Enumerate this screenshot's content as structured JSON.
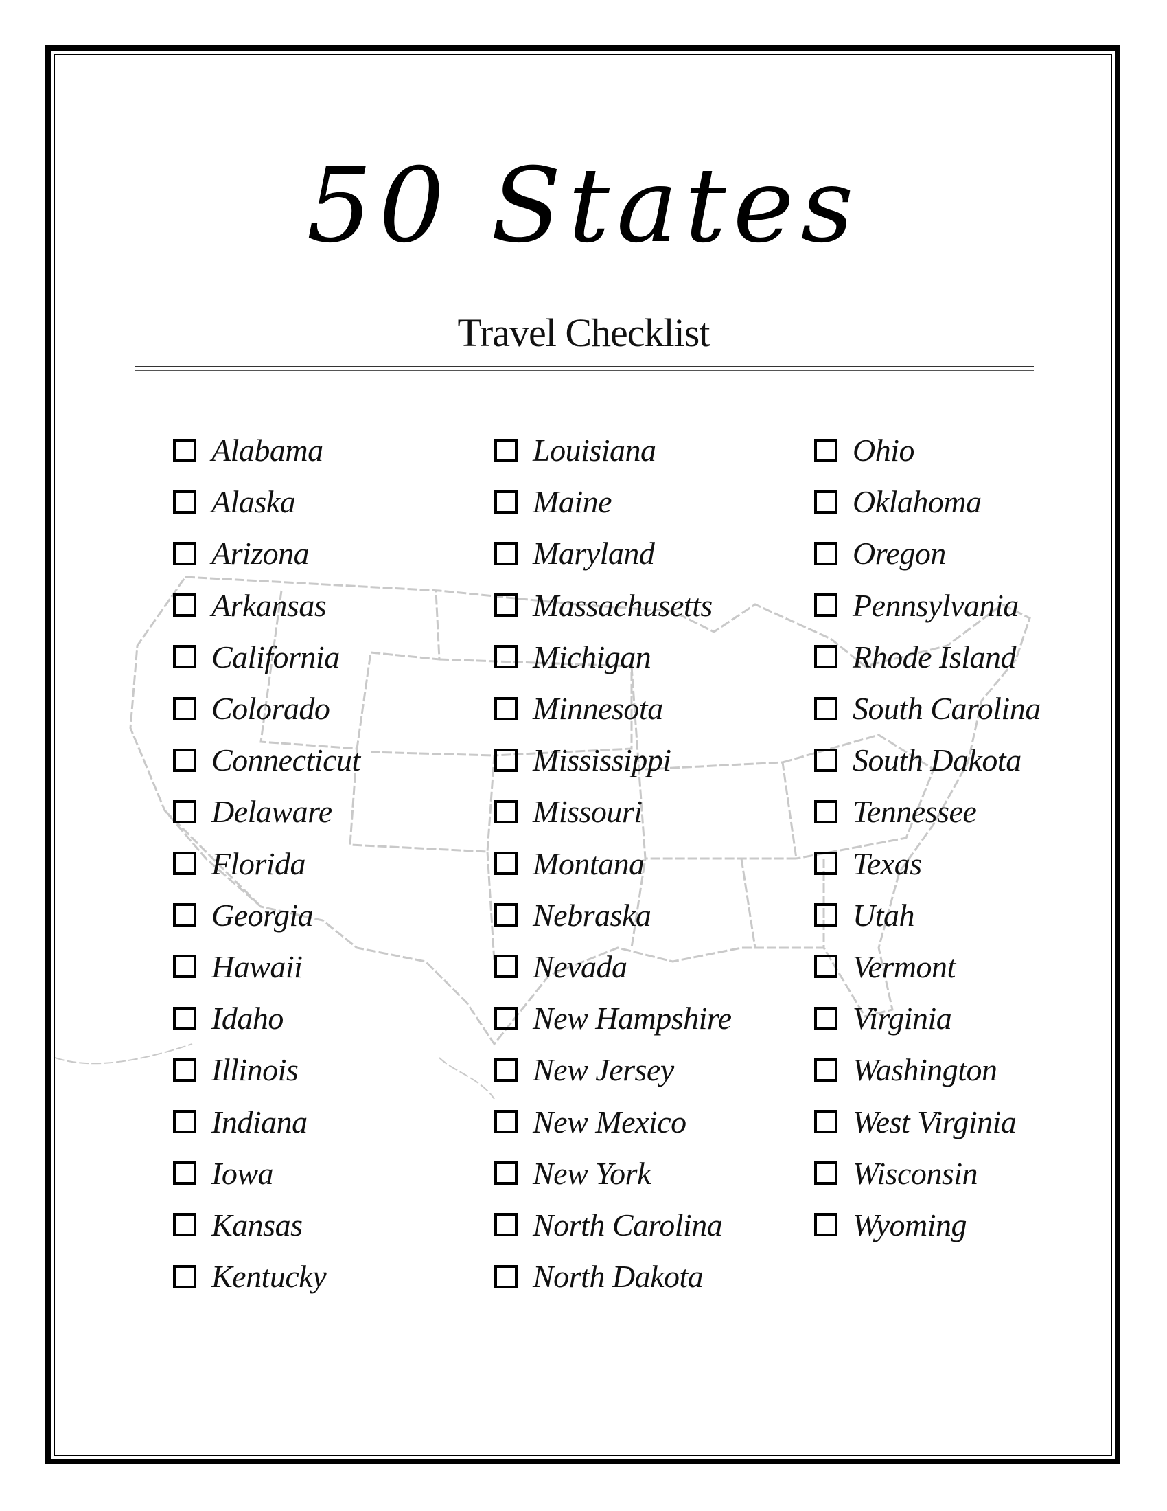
{
  "header": {
    "title": "50 States",
    "subtitle": "Travel Checklist"
  },
  "checklist": {
    "columns": [
      [
        "Alabama",
        "Alaska",
        "Arizona",
        "Arkansas",
        "California",
        "Colorado",
        "Connecticut",
        "Delaware",
        "Florida",
        "Georgia",
        "Hawaii",
        "Idaho",
        "Illinois",
        "Indiana",
        "Iowa",
        "Kansas",
        "Kentucky"
      ],
      [
        "Louisiana",
        "Maine",
        "Maryland",
        "Massachusetts",
        "Michigan",
        "Minnesota",
        "Mississippi",
        "Missouri",
        "Montana",
        "Nebraska",
        "Nevada",
        "New Hampshire",
        "New Jersey",
        "New Mexico",
        "New York",
        "North Carolina",
        "North Dakota"
      ],
      [
        "Ohio",
        "Oklahoma",
        "Oregon",
        "Pennsylvania",
        "Rhode Island",
        "South Carolina",
        "South Dakota",
        "Tennessee",
        "Texas",
        "Utah",
        "Vermont",
        "Virginia",
        "Washington",
        "West Virginia",
        "Wisconsin",
        "Wyoming"
      ]
    ],
    "checked": []
  },
  "background": {
    "image": "us-map-outline",
    "color": "#9a9a9a"
  }
}
